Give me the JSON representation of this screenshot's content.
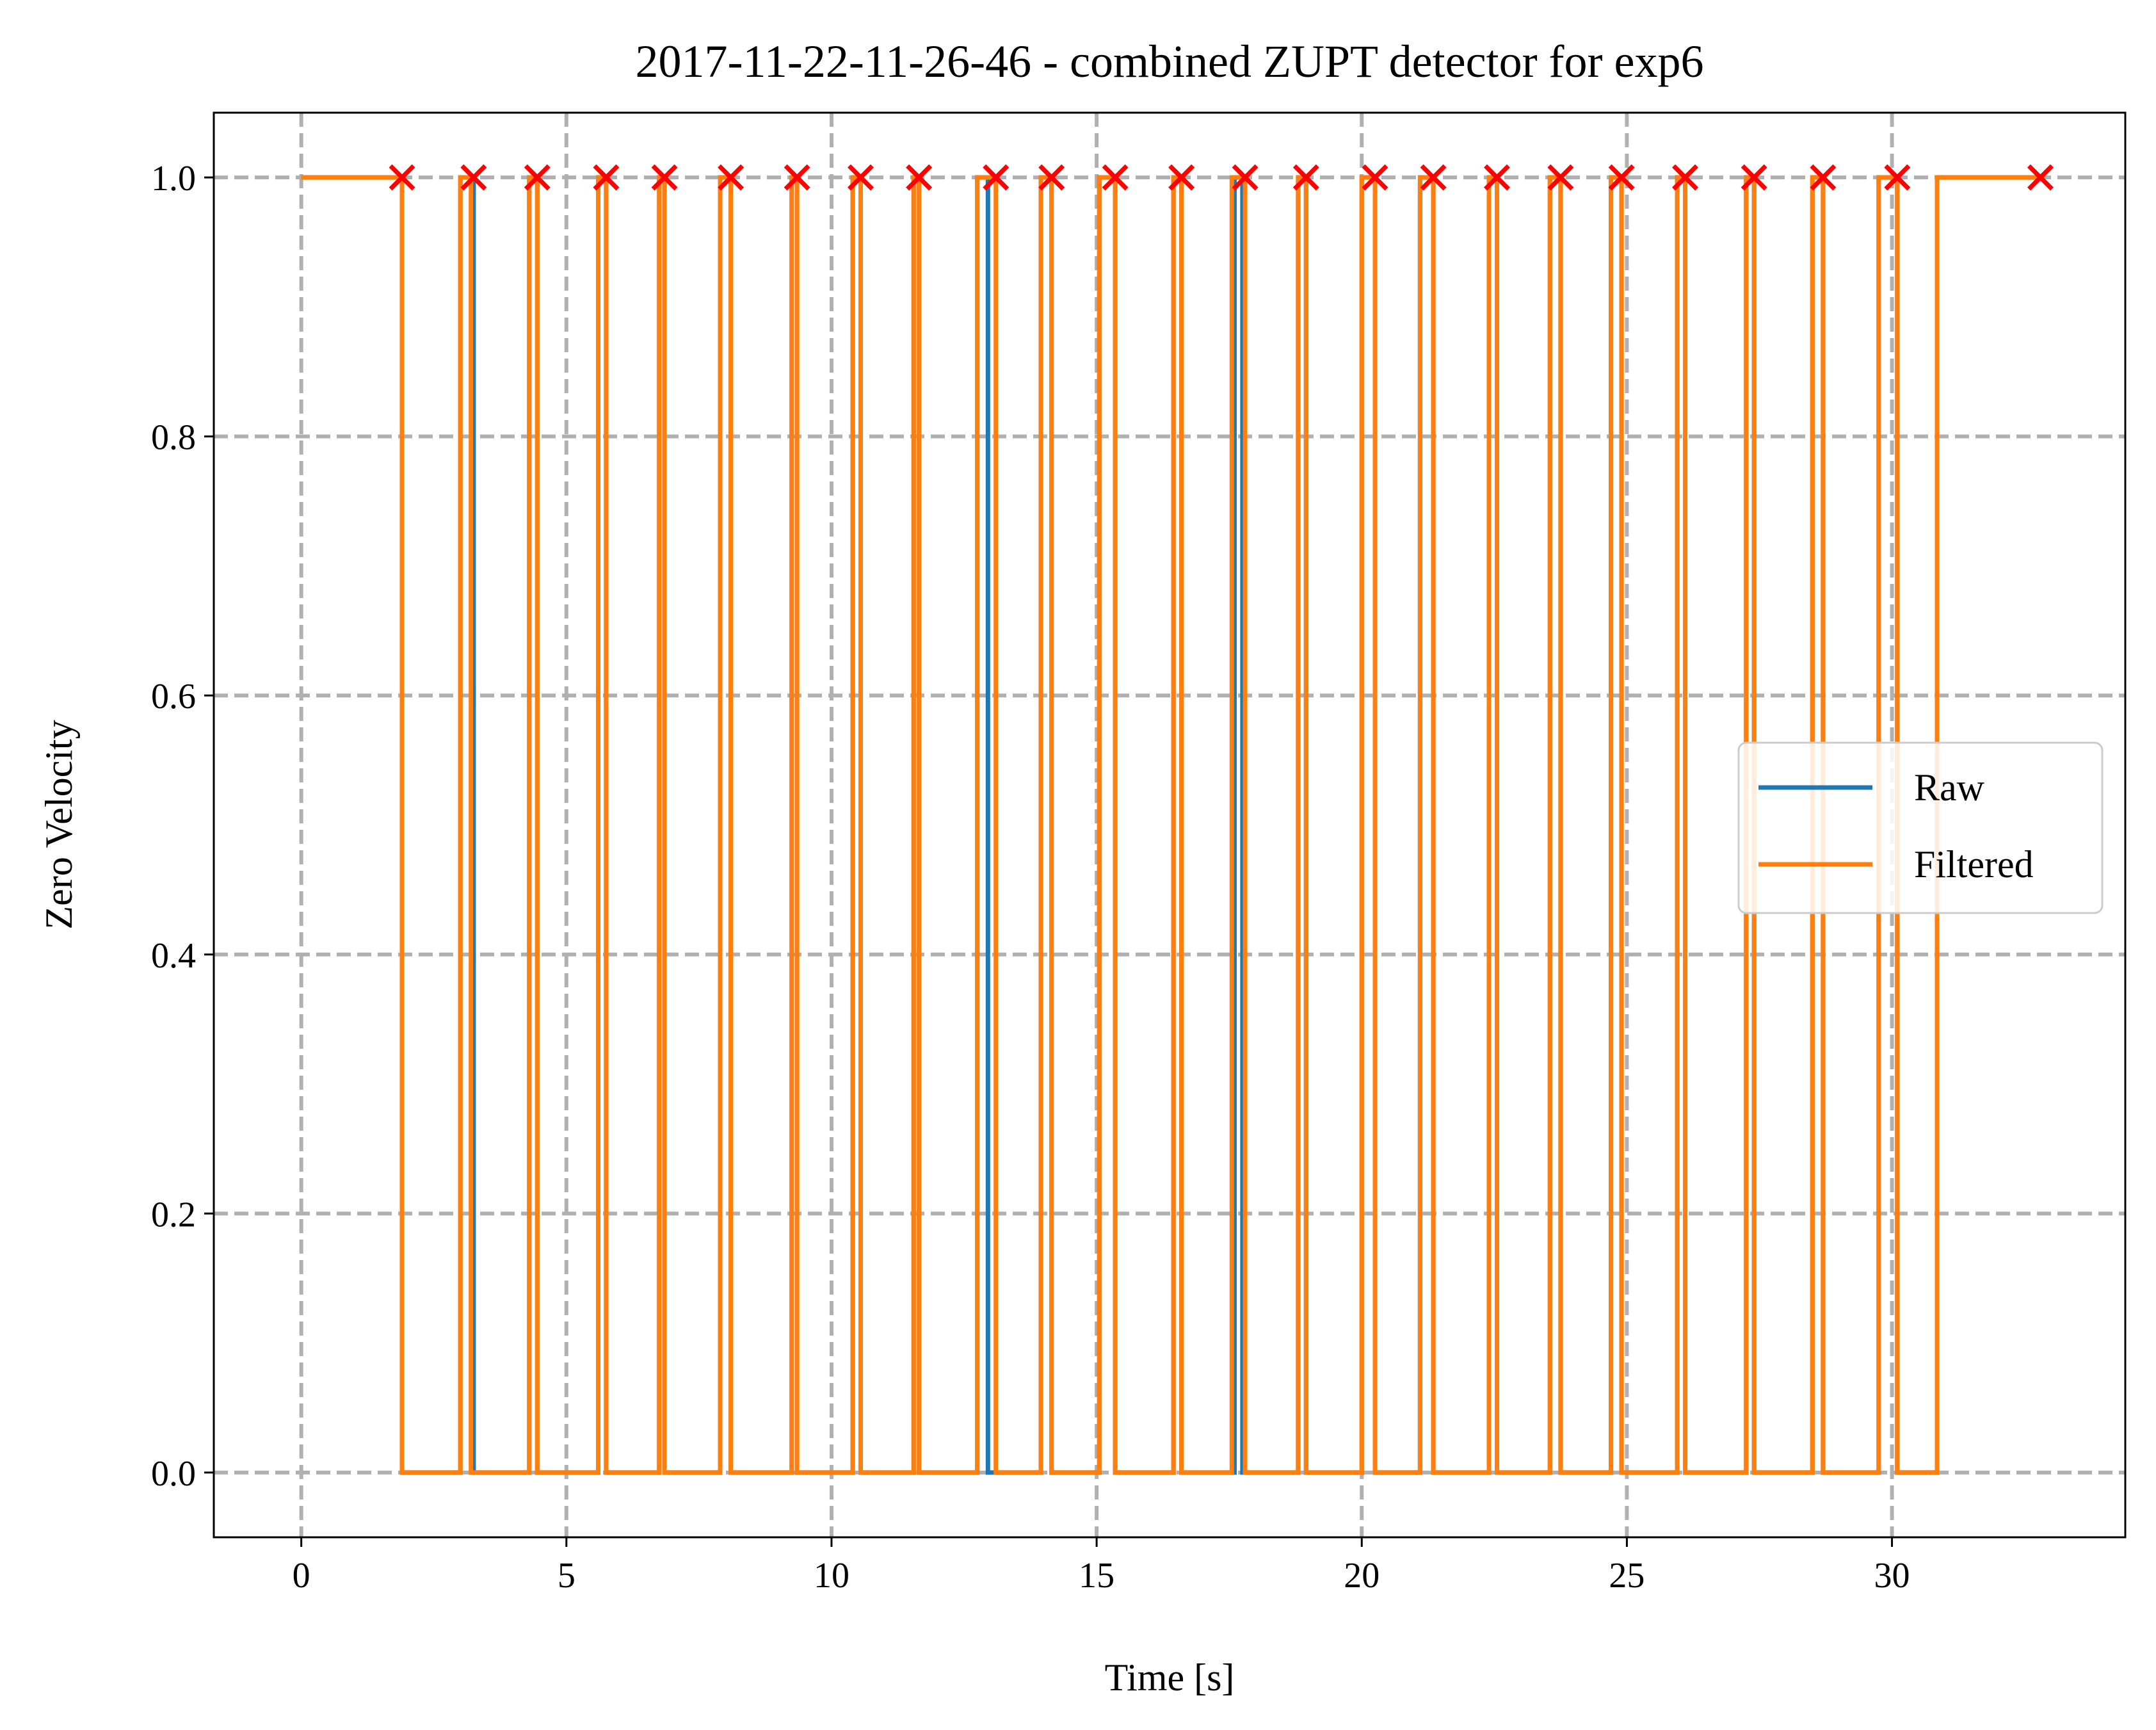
{
  "chart_data": {
    "type": "line",
    "title": "2017-11-22-11-26-46 - combined ZUPT detector for exp6",
    "xlabel": "Time [s]",
    "ylabel": "Zero Velocity",
    "xlim": [
      -1.65,
      34.4
    ],
    "ylim": [
      -0.05,
      1.05
    ],
    "xticks": [
      0,
      5,
      10,
      15,
      20,
      25,
      30
    ],
    "xtick_labels": [
      "0",
      "5",
      "10",
      "15",
      "20",
      "25",
      "30"
    ],
    "yticks": [
      0.0,
      0.2,
      0.4,
      0.6,
      0.8,
      1.0
    ],
    "ytick_labels": [
      "0.0",
      "0.2",
      "0.4",
      "0.6",
      "0.8",
      "1.0"
    ],
    "grid": true,
    "grid_style": "dashed",
    "legend_position": "center-right",
    "series": [
      {
        "name": "Raw",
        "color": "#1f77b4",
        "ones_intervals": [
          [
            0,
            1.9
          ],
          [
            3.0,
            3.25
          ],
          [
            4.3,
            4.45
          ],
          [
            5.6,
            5.75
          ],
          [
            6.75,
            6.85
          ],
          [
            7.9,
            8.1
          ],
          [
            9.25,
            9.35
          ],
          [
            10.4,
            10.55
          ],
          [
            11.55,
            11.65
          ],
          [
            12.75,
            12.95
          ],
          [
            13.95,
            14.15
          ],
          [
            15.05,
            15.35
          ],
          [
            16.45,
            16.6
          ],
          [
            17.6,
            17.75
          ],
          [
            18.8,
            18.95
          ],
          [
            20.0,
            20.25
          ],
          [
            21.1,
            21.35
          ],
          [
            22.4,
            22.55
          ],
          [
            23.55,
            23.75
          ],
          [
            24.7,
            24.9
          ],
          [
            25.95,
            26.1
          ],
          [
            27.25,
            27.4
          ],
          [
            28.5,
            28.7
          ],
          [
            29.75,
            30.1
          ],
          [
            30.85,
            32.8
          ]
        ],
        "x_end": 32.8
      },
      {
        "name": "Filtered",
        "color": "#ff7f0e",
        "ones_intervals": [
          [
            0,
            1.9
          ],
          [
            3.0,
            3.2
          ],
          [
            4.3,
            4.45
          ],
          [
            5.6,
            5.75
          ],
          [
            6.75,
            6.85
          ],
          [
            7.9,
            8.1
          ],
          [
            9.25,
            9.35
          ],
          [
            10.4,
            10.55
          ],
          [
            11.55,
            11.65
          ],
          [
            12.75,
            13.1
          ],
          [
            13.95,
            14.15
          ],
          [
            15.05,
            15.35
          ],
          [
            16.45,
            16.6
          ],
          [
            17.55,
            17.8
          ],
          [
            18.8,
            18.95
          ],
          [
            20.0,
            20.25
          ],
          [
            21.1,
            21.35
          ],
          [
            22.4,
            22.55
          ],
          [
            23.55,
            23.75
          ],
          [
            24.7,
            24.9
          ],
          [
            25.95,
            26.1
          ],
          [
            27.25,
            27.4
          ],
          [
            28.5,
            28.7
          ],
          [
            29.75,
            30.1
          ],
          [
            30.85,
            32.8
          ]
        ],
        "x_end": 32.8
      },
      {
        "name": "",
        "type": "scatter",
        "marker": "x",
        "color": "#ff0000",
        "x": [
          1.9,
          3.25,
          4.45,
          5.75,
          6.85,
          8.1,
          9.35,
          10.55,
          11.65,
          13.1,
          14.15,
          15.35,
          16.6,
          17.8,
          18.95,
          20.25,
          21.35,
          22.55,
          23.75,
          24.9,
          26.1,
          27.4,
          28.7,
          30.1,
          32.8
        ],
        "y": [
          1,
          1,
          1,
          1,
          1,
          1,
          1,
          1,
          1,
          1,
          1,
          1,
          1,
          1,
          1,
          1,
          1,
          1,
          1,
          1,
          1,
          1,
          1,
          1,
          1
        ]
      }
    ]
  }
}
